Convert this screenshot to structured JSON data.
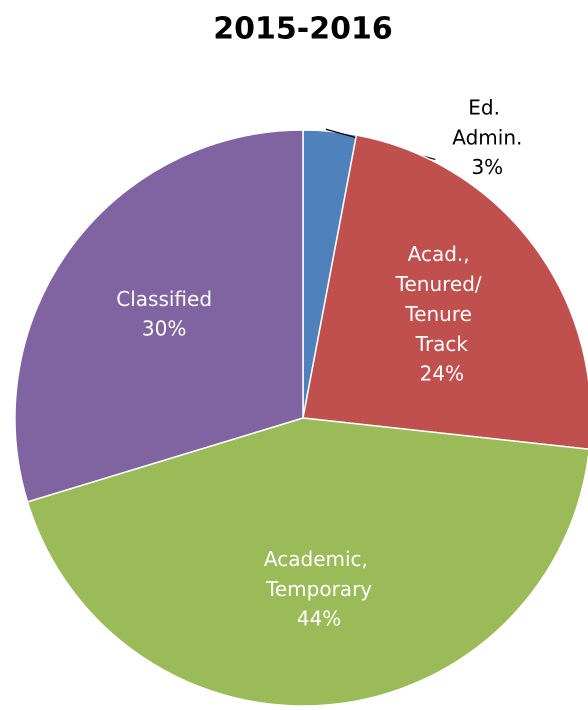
{
  "chart_data": {
    "type": "pie",
    "title": "2015-2016",
    "categories": [
      "Ed. Admin.",
      "Acad., Tenured/ Tenure Track",
      "Academic, Temporary",
      "Classified"
    ],
    "values": [
      3,
      24,
      44,
      30
    ],
    "value_labels": [
      "3%",
      "24%",
      "44%",
      "30%"
    ],
    "colors": [
      "#4f81bd",
      "#c0504d",
      "#9bbb59",
      "#8064a2"
    ]
  }
}
